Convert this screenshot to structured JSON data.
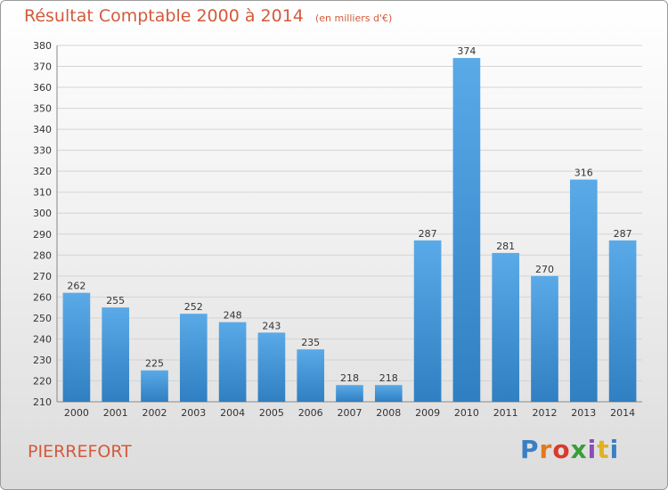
{
  "header": {
    "title": "Résultat Comptable 2000 à 2014",
    "subtitle": "(en milliers d'€)"
  },
  "footer": {
    "commune": "PIERREFORT",
    "logo_text": "Proxiti",
    "logo_colors": [
      "#3a7fc4",
      "#e07a1f",
      "#d93a2b",
      "#3a9d3a",
      "#8b4fb0",
      "#e0b21f",
      "#3a7fc4"
    ]
  },
  "chart_data": {
    "type": "bar",
    "categories": [
      "2000",
      "2001",
      "2002",
      "2003",
      "2004",
      "2005",
      "2006",
      "2007",
      "2008",
      "2009",
      "2010",
      "2011",
      "2012",
      "2013",
      "2014"
    ],
    "values": [
      262,
      255,
      225,
      252,
      248,
      243,
      235,
      218,
      218,
      287,
      374,
      281,
      270,
      316,
      287
    ],
    "ylim": [
      210,
      380
    ],
    "yticks": [
      210,
      220,
      230,
      240,
      250,
      260,
      270,
      280,
      290,
      300,
      310,
      320,
      330,
      340,
      350,
      360,
      370,
      380
    ],
    "grid": true,
    "bar_color": "#4a97d8",
    "legend": "none"
  }
}
